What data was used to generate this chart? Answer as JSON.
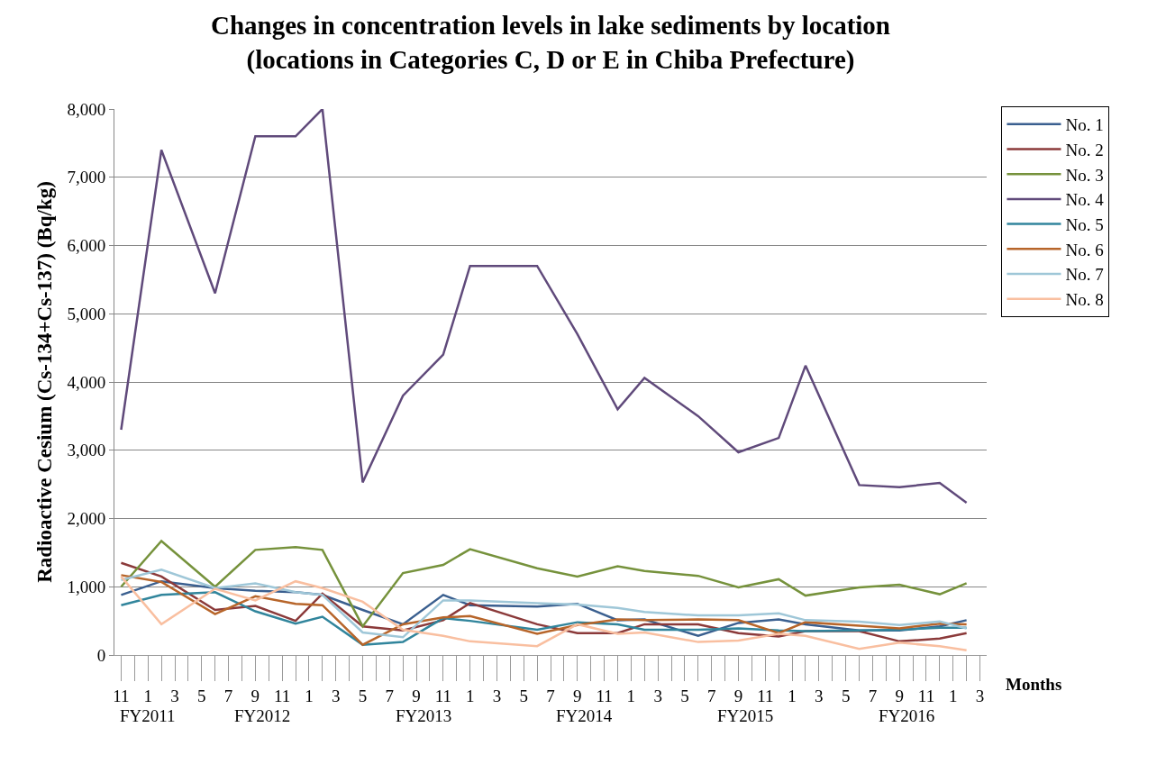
{
  "chart_data": {
    "type": "line",
    "title": "Changes in concentration levels in lake sediments by location\n(locations in Categories C, D or E in Chiba Prefecture)",
    "ylabel": "Radioactive Cesium (Cs-134+Cs-137) (Bq/kg)",
    "xlabel": "Months",
    "categories": [
      "11",
      null,
      "1",
      null,
      "3",
      null,
      "5",
      null,
      "7",
      null,
      "9",
      null,
      "11",
      null,
      "1",
      null,
      "3",
      null,
      "5",
      null,
      "7",
      null,
      "9",
      null,
      "11",
      null,
      "1",
      null,
      "3",
      null,
      "5",
      null,
      "7",
      null,
      "9",
      null,
      "11",
      null,
      "1",
      null,
      "3",
      null,
      "5",
      null,
      "7",
      null,
      "9",
      null,
      "11",
      null,
      "1",
      null,
      "3",
      null,
      "5",
      null,
      "7",
      null,
      "9",
      null,
      "11",
      null,
      "1",
      null,
      "3"
    ],
    "ylim": [
      0,
      8000
    ],
    "yticks": [
      0,
      {
        "value": 1000,
        "label": "1,000"
      },
      {
        "value": 2000,
        "label": "2,000"
      },
      {
        "value": 3000,
        "label": "3,000"
      },
      {
        "value": 4000,
        "label": "4,000"
      },
      {
        "value": 5000,
        "label": "5,000"
      },
      {
        "value": 6000,
        "label": "6,000"
      },
      {
        "value": 7000,
        "label": "7,000"
      },
      {
        "value": 8000,
        "label": "8,000"
      }
    ],
    "grid": "y",
    "legend": "right",
    "line_style": "solid",
    "annotations": [
      "FY2011",
      "FY2012",
      "FY2013",
      "FY2014",
      "FY2015",
      "FY2016"
    ],
    "series": [
      {
        "name": "No. 1",
        "color": "#3a5f8f",
        "values": [
          880,
          null,
          null,
          1080,
          null,
          null,
          null,
          980,
          null,
          null,
          940,
          null,
          null,
          920,
          null,
          880,
          null,
          null,
          660,
          null,
          null,
          450,
          null,
          null,
          880,
          null,
          730,
          null,
          null,
          null,
          null,
          710,
          null,
          null,
          750,
          null,
          null,
          510,
          null,
          520,
          null,
          null,
          null,
          280,
          null,
          null,
          470,
          null,
          null,
          520,
          null,
          450,
          null,
          null,
          null,
          360,
          null,
          null,
          360,
          null,
          null,
          420,
          null,
          510,
          null
        ]
      },
      {
        "name": "No. 2",
        "color": "#8b3a3a",
        "values": [
          1350,
          null,
          null,
          1150,
          null,
          null,
          null,
          660,
          null,
          null,
          720,
          null,
          null,
          500,
          null,
          900,
          null,
          null,
          420,
          null,
          null,
          360,
          null,
          null,
          510,
          null,
          760,
          null,
          null,
          null,
          null,
          450,
          null,
          null,
          320,
          null,
          null,
          320,
          null,
          450,
          null,
          null,
          null,
          450,
          null,
          null,
          320,
          null,
          null,
          270,
          null,
          350,
          null,
          null,
          null,
          350,
          null,
          null,
          200,
          null,
          null,
          240,
          null,
          320,
          null
        ]
      },
      {
        "name": "No. 3",
        "color": "#76923c",
        "values": [
          1000,
          null,
          null,
          1670,
          null,
          null,
          null,
          1000,
          null,
          null,
          1540,
          null,
          null,
          1580,
          null,
          1540,
          null,
          null,
          420,
          null,
          null,
          1200,
          null,
          null,
          1320,
          null,
          1550,
          null,
          null,
          null,
          null,
          1270,
          null,
          null,
          1150,
          null,
          null,
          1300,
          null,
          1230,
          null,
          null,
          null,
          1160,
          null,
          null,
          990,
          null,
          null,
          1110,
          null,
          870,
          null,
          null,
          null,
          990,
          null,
          null,
          1030,
          null,
          null,
          890,
          null,
          1050,
          null
        ]
      },
      {
        "name": "No. 4",
        "color": "#604a7b",
        "values": [
          3300,
          null,
          null,
          7400,
          null,
          null,
          null,
          5300,
          null,
          null,
          7600,
          null,
          null,
          7600,
          null,
          8000,
          null,
          null,
          2530,
          null,
          null,
          3800,
          null,
          null,
          4400,
          null,
          5700,
          null,
          null,
          null,
          null,
          5700,
          null,
          null,
          4700,
          null,
          null,
          3600,
          null,
          4060,
          null,
          null,
          null,
          3500,
          null,
          null,
          2970,
          null,
          null,
          3180,
          null,
          4240,
          null,
          null,
          null,
          2490,
          null,
          null,
          2460,
          null,
          null,
          2520,
          null,
          2230,
          null
        ]
      },
      {
        "name": "No. 5",
        "color": "#31859c",
        "values": [
          730,
          null,
          null,
          880,
          null,
          null,
          null,
          920,
          null,
          null,
          640,
          null,
          null,
          460,
          null,
          560,
          null,
          null,
          150,
          null,
          null,
          190,
          null,
          null,
          540,
          null,
          500,
          null,
          null,
          null,
          null,
          370,
          null,
          null,
          480,
          null,
          null,
          450,
          null,
          370,
          null,
          null,
          null,
          370,
          null,
          null,
          390,
          null,
          null,
          360,
          null,
          350,
          null,
          null,
          null,
          360,
          null,
          null,
          370,
          null,
          null,
          400,
          null,
          400,
          null
        ]
      },
      {
        "name": "No. 6",
        "color": "#b7652a",
        "values": [
          1170,
          null,
          null,
          1070,
          null,
          null,
          null,
          600,
          null,
          null,
          860,
          null,
          null,
          750,
          null,
          730,
          null,
          null,
          150,
          null,
          null,
          450,
          null,
          null,
          550,
          null,
          570,
          null,
          null,
          null,
          null,
          310,
          null,
          null,
          440,
          null,
          null,
          520,
          null,
          510,
          null,
          null,
          null,
          520,
          null,
          null,
          510,
          null,
          null,
          320,
          null,
          480,
          null,
          null,
          null,
          430,
          null,
          null,
          390,
          null,
          null,
          460,
          null,
          450,
          null
        ]
      },
      {
        "name": "No. 7",
        "color": "#9fc7d8",
        "values": [
          1100,
          null,
          null,
          1250,
          null,
          null,
          null,
          980,
          null,
          null,
          1050,
          null,
          null,
          920,
          null,
          880,
          null,
          null,
          330,
          null,
          null,
          260,
          null,
          null,
          800,
          null,
          800,
          null,
          null,
          null,
          null,
          760,
          null,
          null,
          740,
          null,
          null,
          690,
          null,
          630,
          null,
          null,
          null,
          580,
          null,
          null,
          580,
          null,
          null,
          610,
          null,
          510,
          null,
          null,
          null,
          490,
          null,
          null,
          440,
          null,
          null,
          490,
          null,
          390,
          null
        ]
      },
      {
        "name": "No. 8",
        "color": "#f9bfa0",
        "values": [
          1150,
          null,
          null,
          450,
          null,
          null,
          null,
          970,
          null,
          null,
          800,
          null,
          null,
          1080,
          null,
          980,
          null,
          null,
          780,
          null,
          null,
          370,
          null,
          null,
          280,
          null,
          200,
          null,
          null,
          null,
          null,
          130,
          null,
          null,
          450,
          null,
          null,
          310,
          null,
          330,
          null,
          null,
          null,
          190,
          null,
          null,
          210,
          null,
          null,
          310,
          null,
          280,
          null,
          null,
          null,
          90,
          null,
          null,
          180,
          null,
          null,
          130,
          null,
          70,
          null
        ]
      }
    ]
  }
}
